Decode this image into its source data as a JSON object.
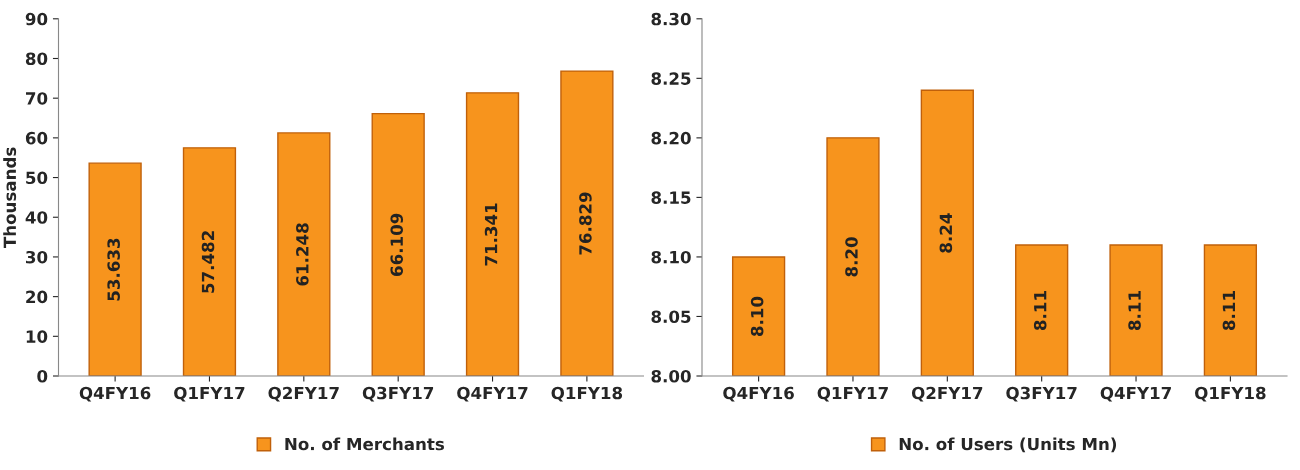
{
  "chart_data": [
    {
      "type": "bar",
      "ylabel": "Thousands",
      "categories": [
        "Q4FY16",
        "Q1FY17",
        "Q2FY17",
        "Q3FY17",
        "Q4FY17",
        "Q1FY18"
      ],
      "series": [
        {
          "name": "No. of Merchants",
          "color": "#f7941d",
          "values": [
            53.633,
            57.482,
            61.248,
            66.109,
            71.341,
            76.829
          ],
          "value_labels": [
            "53.633",
            "57.482",
            "61.248",
            "66.109",
            "71.341",
            "76.829"
          ]
        }
      ],
      "ylim": [
        0,
        90
      ],
      "yticks": [
        0,
        10,
        20,
        30,
        40,
        50,
        60,
        70,
        80,
        90
      ],
      "grid": false,
      "legend": "bottom"
    },
    {
      "type": "bar",
      "categories": [
        "Q4FY16",
        "Q1FY17",
        "Q2FY17",
        "Q3FY17",
        "Q4FY17",
        "Q1FY18"
      ],
      "series": [
        {
          "name": "No. of Users (Units Mn)",
          "color": "#f7941d",
          "values": [
            8.1,
            8.2,
            8.24,
            8.11,
            8.11,
            8.11
          ],
          "value_labels": [
            "8.10",
            "8.20",
            "8.24",
            "8.11",
            "8.11",
            "8.11"
          ]
        }
      ],
      "ylim": [
        8.0,
        8.3
      ],
      "yticks": [
        {
          "value": 8.0,
          "label": "8.00"
        },
        {
          "value": 8.05,
          "label": "8.05"
        },
        {
          "value": 8.1,
          "label": "8.10"
        },
        {
          "value": 8.15,
          "label": "8.15"
        },
        {
          "value": 8.2,
          "label": "8.20"
        },
        {
          "value": 8.25,
          "label": "8.25"
        },
        {
          "value": 8.3,
          "label": "8.30"
        }
      ],
      "grid": false,
      "legend": "bottom"
    }
  ]
}
